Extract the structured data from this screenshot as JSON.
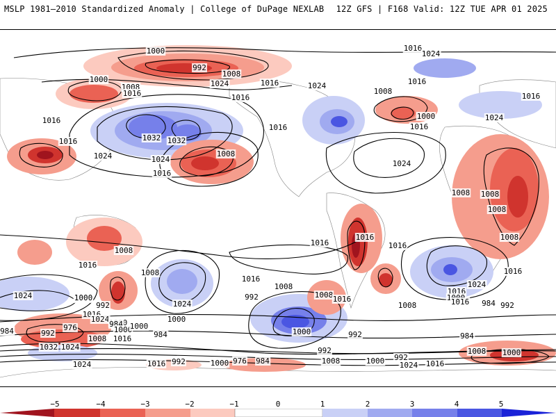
{
  "header": {
    "title_left": "MSLP 1981–2010 Standardized Anomaly | College of DuPage NEXLAB",
    "title_right": "12Z GFS | F168 Valid: 12Z TUE APR 01 2025"
  },
  "colors": {
    "neg5": "#a0141e",
    "neg4": "#d0342e",
    "neg3": "#ea6254",
    "neg2": "#f59d8d",
    "neg1": "#fccabf",
    "zero": "#ffffff",
    "pos1": "#c9d0f6",
    "pos2": "#a0aaf0",
    "pos3": "#7680ea",
    "pos4": "#4a56e2",
    "pos5": "#1a22d8",
    "land": "#cfd4d8",
    "contour": "#000000"
  },
  "colorbar": {
    "ticks": [
      "−5",
      "−4",
      "−3",
      "−2",
      "−1",
      "0",
      "1",
      "2",
      "3",
      "4",
      "5"
    ]
  },
  "isobars": [
    {
      "id": "l1",
      "text": "1000"
    },
    {
      "id": "l2",
      "text": "992"
    },
    {
      "id": "l3",
      "text": "1008"
    },
    {
      "id": "l4",
      "text": "1016"
    },
    {
      "id": "l5",
      "text": "1024"
    },
    {
      "id": "l6",
      "text": "1000"
    },
    {
      "id": "l7",
      "text": "1008"
    },
    {
      "id": "l8",
      "text": "1016"
    },
    {
      "id": "l9",
      "text": "1024"
    },
    {
      "id": "l10",
      "text": "1016"
    },
    {
      "id": "l11",
      "text": "1016"
    },
    {
      "id": "l12",
      "text": "1024"
    },
    {
      "id": "l13",
      "text": "1032"
    },
    {
      "id": "l14",
      "text": "1032"
    },
    {
      "id": "l15",
      "text": "1024"
    },
    {
      "id": "l16",
      "text": "1016"
    },
    {
      "id": "l17",
      "text": "1008"
    },
    {
      "id": "l18",
      "text": "1016"
    },
    {
      "id": "l19",
      "text": "1016"
    },
    {
      "id": "l20",
      "text": "1016"
    },
    {
      "id": "l21",
      "text": "1024"
    },
    {
      "id": "l22",
      "text": "1024"
    },
    {
      "id": "l23",
      "text": "1008"
    },
    {
      "id": "l24",
      "text": "1016"
    },
    {
      "id": "l25",
      "text": "1000"
    },
    {
      "id": "l26",
      "text": "1016"
    },
    {
      "id": "l27",
      "text": "1024"
    },
    {
      "id": "l28",
      "text": "1016"
    },
    {
      "id": "l29",
      "text": "1016"
    },
    {
      "id": "l30",
      "text": "1024"
    },
    {
      "id": "l31",
      "text": "1008"
    },
    {
      "id": "l32",
      "text": "1008"
    },
    {
      "id": "l33",
      "text": "1000"
    },
    {
      "id": "l34",
      "text": "1008"
    },
    {
      "id": "l35",
      "text": "1008"
    },
    {
      "id": "l36",
      "text": "1008"
    },
    {
      "id": "l37",
      "text": "1008"
    },
    {
      "id": "l38",
      "text": "1016"
    },
    {
      "id": "l39",
      "text": "1016"
    },
    {
      "id": "l40",
      "text": "1016"
    },
    {
      "id": "l41",
      "text": "1016"
    },
    {
      "id": "l42",
      "text": "1008"
    },
    {
      "id": "l43",
      "text": "1016"
    },
    {
      "id": "l44",
      "text": "1016"
    },
    {
      "id": "l45",
      "text": "1024"
    },
    {
      "id": "l46",
      "text": "1024"
    },
    {
      "id": "l47",
      "text": "1000"
    },
    {
      "id": "l48",
      "text": "992"
    },
    {
      "id": "l49",
      "text": "1016"
    },
    {
      "id": "l50",
      "text": "1024"
    },
    {
      "id": "l51",
      "text": "992"
    },
    {
      "id": "l52",
      "text": "1008"
    },
    {
      "id": "l53",
      "text": "1016"
    },
    {
      "id": "l54",
      "text": "1000"
    },
    {
      "id": "l55",
      "text": "992"
    },
    {
      "id": "l56",
      "text": "1008"
    },
    {
      "id": "l57",
      "text": "1000"
    },
    {
      "id": "l58",
      "text": "984"
    },
    {
      "id": "l59",
      "text": "1000"
    },
    {
      "id": "l60",
      "text": "1000"
    },
    {
      "id": "l61",
      "text": "976"
    },
    {
      "id": "l62",
      "text": "984"
    },
    {
      "id": "l63",
      "text": "1000"
    },
    {
      "id": "l64",
      "text": "992"
    },
    {
      "id": "l65",
      "text": "1008"
    },
    {
      "id": "l66",
      "text": "1016"
    },
    {
      "id": "l67",
      "text": "984"
    },
    {
      "id": "l68",
      "text": "1032"
    },
    {
      "id": "l69",
      "text": "1024"
    },
    {
      "id": "l70",
      "text": "1024"
    },
    {
      "id": "l71",
      "text": "1016"
    },
    {
      "id": "l72",
      "text": "992"
    },
    {
      "id": "l73",
      "text": "1000"
    },
    {
      "id": "l74",
      "text": "976"
    },
    {
      "id": "l75",
      "text": "984"
    },
    {
      "id": "l76",
      "text": "992"
    },
    {
      "id": "l77",
      "text": "1008"
    },
    {
      "id": "l78",
      "text": "1000"
    },
    {
      "id": "l79",
      "text": "992"
    },
    {
      "id": "l80",
      "text": "1024"
    },
    {
      "id": "l81",
      "text": "1016"
    },
    {
      "id": "l82",
      "text": "984"
    },
    {
      "id": "l83",
      "text": "992"
    },
    {
      "id": "l84",
      "text": "1008"
    },
    {
      "id": "l85",
      "text": "1000"
    },
    {
      "id": "l86",
      "text": "992"
    },
    {
      "id": "l87",
      "text": "984"
    },
    {
      "id": "l88",
      "text": "1016"
    },
    {
      "id": "l89",
      "text": "1000"
    }
  ]
}
